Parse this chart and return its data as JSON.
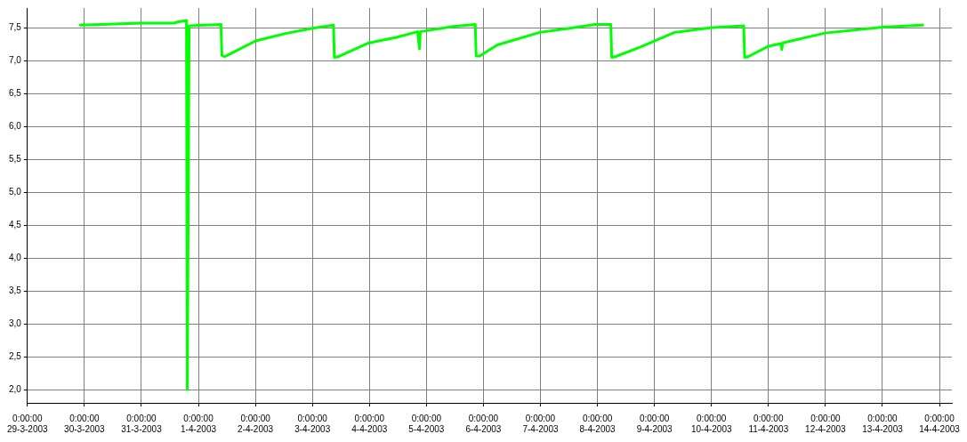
{
  "chart_data": {
    "type": "line",
    "x": [
      "2003-03-29T22:12",
      "2003-03-31T00:00",
      "2003-03-31T13:44",
      "2003-03-31T15:36",
      "2003-03-31T18:58",
      "2003-03-31T19:20",
      "2003-03-31T19:42",
      "2003-03-31T20:05",
      "2003-04-01T09:30",
      "2003-04-01T09:53",
      "2003-04-01T11:00",
      "2003-04-02T00:03",
      "2003-04-02T12:22",
      "2003-04-02T23:33",
      "2003-04-03T08:53",
      "2003-04-03T09:14",
      "2003-04-03T10:44",
      "2003-04-03T23:47",
      "2003-04-04T10:59",
      "2003-04-04T20:18",
      "2003-04-04T21:03",
      "2003-04-04T21:26",
      "2003-04-05T11:14",
      "2003-04-05T20:34",
      "2003-04-05T20:56",
      "2003-04-05T22:25",
      "2003-04-06T05:53",
      "2003-04-06T23:47",
      "2003-04-07T11:44",
      "2003-04-07T22:55",
      "2003-04-08T05:38",
      "2003-04-08T06:01",
      "2003-04-08T07:31",
      "2003-04-08T18:20",
      "2003-04-09T08:30",
      "2003-04-09T23:25",
      "2003-04-10T13:36",
      "2003-04-10T13:58",
      "2003-04-10T15:27",
      "2003-04-11T00:03",
      "2003-04-11T05:15",
      "2003-04-11T05:38",
      "2003-04-11T06:00",
      "2003-04-11T23:54",
      "2003-04-13T00:09",
      "2003-04-13T16:57"
    ],
    "series": [
      {
        "color": "#00ff00",
        "values": [
          7.54,
          7.57,
          7.57,
          7.59,
          7.61,
          2.0,
          4.65,
          7.53,
          7.55,
          7.08,
          7.06,
          7.3,
          7.41,
          7.49,
          7.54,
          7.05,
          7.06,
          7.27,
          7.35,
          7.44,
          7.18,
          7.44,
          7.52,
          7.55,
          7.07,
          7.07,
          7.24,
          7.43,
          7.49,
          7.55,
          7.55,
          7.05,
          7.06,
          7.21,
          7.43,
          7.5,
          7.53,
          7.05,
          7.06,
          7.22,
          7.26,
          7.17,
          7.27,
          7.42,
          7.51,
          7.54
        ]
      }
    ],
    "xlim": [
      "2003-03-29",
      "2003-04-14T05:15"
    ],
    "xticks": [
      {
        "value": "2003-03-29",
        "label": "0:00:00\n29-3-2003"
      },
      {
        "value": "2003-03-30",
        "label": "0:00:00\n30-3-2003"
      },
      {
        "value": "2003-03-31",
        "label": "0:00:00\n31-3-2003"
      },
      {
        "value": "2003-04-01",
        "label": "0:00:00\n1-4-2003"
      },
      {
        "value": "2003-04-02",
        "label": "0:00:00\n2-4-2003"
      },
      {
        "value": "2003-04-03",
        "label": "0:00:00\n3-4-2003"
      },
      {
        "value": "2003-04-04",
        "label": "0:00:00\n4-4-2003"
      },
      {
        "value": "2003-04-05",
        "label": "0:00:00\n5-4-2003"
      },
      {
        "value": "2003-04-06",
        "label": "0:00:00\n6-4-2003"
      },
      {
        "value": "2003-04-07",
        "label": "0:00:00\n7-4-2003"
      },
      {
        "value": "2003-04-08",
        "label": "0:00:00\n8-4-2003"
      },
      {
        "value": "2003-04-09",
        "label": "0:00:00\n9-4-2003"
      },
      {
        "value": "2003-04-10",
        "label": "0:00:00\n10-4-2003"
      },
      {
        "value": "2003-04-11",
        "label": "0:00:00\n11-4-2003"
      },
      {
        "value": "2003-04-12",
        "label": "0:00:00\n12-4-2003"
      },
      {
        "value": "2003-04-13",
        "label": "0:00:00\n13-4-2003"
      },
      {
        "value": "2003-04-14",
        "label": "0:00:00\n14-4-2003"
      }
    ],
    "ylim": [
      1.8,
      7.8
    ],
    "yticks": [
      {
        "value": 2.0,
        "label": "2,0"
      },
      {
        "value": 2.5,
        "label": "2,5"
      },
      {
        "value": 3.0,
        "label": "3,0"
      },
      {
        "value": 3.5,
        "label": "3,5"
      },
      {
        "value": 4.0,
        "label": "4,0"
      },
      {
        "value": 4.5,
        "label": "4,5"
      },
      {
        "value": 5.0,
        "label": "5,0"
      },
      {
        "value": 5.5,
        "label": "5,5"
      },
      {
        "value": 6.0,
        "label": "6,0"
      },
      {
        "value": 6.5,
        "label": "6,5"
      },
      {
        "value": 7.0,
        "label": "7,0"
      },
      {
        "value": 7.5,
        "label": "7,5"
      }
    ],
    "grid": true,
    "legend": false,
    "marker": "none",
    "line_style": "solid"
  }
}
